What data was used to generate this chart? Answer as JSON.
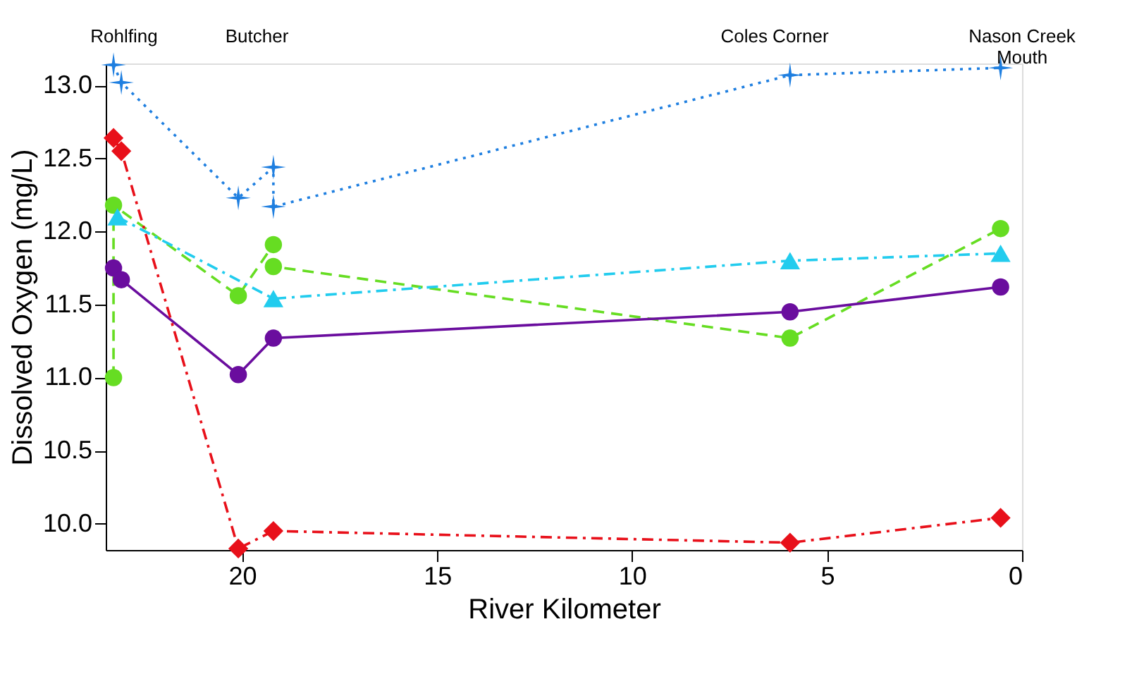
{
  "chart_data": {
    "type": "line",
    "xlabel": "River Kilometer",
    "ylabel": "Dissolved Oxygen (mg/L)",
    "xlim": [
      23.5,
      0
    ],
    "xticks": [
      20,
      15,
      10,
      5,
      0
    ],
    "ylim": [
      9.82,
      13.15
    ],
    "yticks": [
      {
        "value": 10,
        "label": "10.0"
      },
      {
        "value": 10.5,
        "label": "10.5"
      },
      {
        "value": 11,
        "label": "11.0"
      },
      {
        "value": 11.5,
        "label": "11.5"
      },
      {
        "value": 12,
        "label": "12.0"
      },
      {
        "value": 12.5,
        "label": "12.5"
      },
      {
        "value": 13,
        "label": "13.0"
      }
    ],
    "annotations": [
      "Rohlfing",
      "Butcher",
      "Coles Corner",
      "Nason Creek\nMouth"
    ],
    "grid": false,
    "series": [
      {
        "color": "#1f7fe0",
        "marker": "star",
        "line_style": "dotted",
        "x": [
          23.3,
          23.1,
          20.1,
          19.2,
          19.2,
          5.95,
          0.55
        ],
        "values": [
          13.14,
          13.02,
          12.23,
          12.44,
          12.17,
          13.07,
          13.12
        ]
      },
      {
        "color": "#66dd22",
        "marker": "circle",
        "line_style": "dashed",
        "x": [
          23.3,
          23.3,
          20.1,
          19.2,
          19.2,
          5.95,
          0.55
        ],
        "values": [
          11.0,
          12.18,
          11.56,
          11.91,
          11.76,
          11.27,
          12.02
        ]
      },
      {
        "color": "#22ccee",
        "marker": "triangle",
        "line_style": "dashdot",
        "x": [
          23.2,
          19.2,
          5.95,
          0.55
        ],
        "values": [
          12.1,
          11.54,
          11.8,
          11.85
        ]
      },
      {
        "color": "#6a0d9e",
        "marker": "circle",
        "line_style": "solid",
        "x": [
          23.3,
          23.1,
          20.1,
          19.2,
          5.95,
          0.55
        ],
        "values": [
          11.75,
          11.67,
          11.02,
          11.27,
          11.45,
          11.62
        ]
      },
      {
        "color": "#e8101a",
        "marker": "diamond",
        "line_style": "dashdot",
        "x": [
          23.3,
          23.1,
          20.1,
          19.2,
          5.95,
          0.55
        ],
        "values": [
          12.64,
          12.55,
          9.83,
          9.95,
          9.87,
          10.04
        ]
      }
    ]
  }
}
